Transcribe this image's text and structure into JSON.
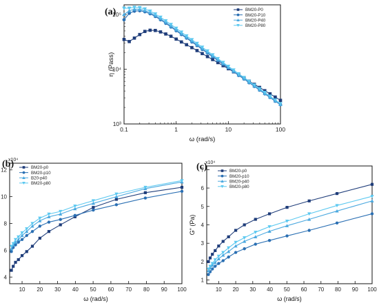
{
  "chart_data": [
    {
      "type": "line",
      "panel_label": "(a)",
      "xlabel": "ω (rad/s)",
      "ylabel": "η (Pass)",
      "xscale": "log",
      "yscale": "log",
      "xlim": [
        0.1,
        100
      ],
      "ylim": [
        1000,
        150000
      ],
      "xticks": [
        0.1,
        1,
        10,
        100
      ],
      "xtick_labels": [
        "0.1",
        "1",
        "10",
        "100"
      ],
      "yticks": [
        1000,
        10000,
        100000
      ],
      "ytick_labels": [
        "10³",
        "10⁴",
        "10⁵"
      ],
      "legend_position": "top-right",
      "grid": false,
      "x": [
        0.1,
        0.126,
        0.158,
        0.2,
        0.251,
        0.316,
        0.398,
        0.501,
        0.631,
        0.794,
        1,
        1.26,
        1.58,
        2,
        2.51,
        3.16,
        3.98,
        5.01,
        6.31,
        7.94,
        10,
        12.6,
        15.8,
        20,
        25.1,
        31.6,
        39.8,
        50.1,
        63.1,
        79.4,
        100
      ],
      "series": [
        {
          "name": "BM20-P0",
          "marker": "square",
          "color": "#1f3d7a",
          "values": [
            35000,
            32000,
            37000,
            43000,
            49000,
            51500,
            51000,
            48000,
            44000,
            40000,
            35500,
            31500,
            28000,
            24800,
            21900,
            19300,
            17000,
            15000,
            13200,
            11600,
            10200,
            8950,
            7850,
            6900,
            6050,
            5300,
            4650,
            4050,
            3550,
            3100,
            2700
          ]
        },
        {
          "name": "BM20-P10",
          "marker": "circle",
          "color": "#2a6fb3",
          "values": [
            80000,
            105000,
            115000,
            117000,
            112000,
            103000,
            92000,
            80000,
            69000,
            59000,
            50500,
            43000,
            37000,
            31500,
            27000,
            23000,
            19700,
            16800,
            14400,
            12300,
            10500,
            9000,
            7700,
            6600,
            5650,
            4850,
            4150,
            3550,
            3050,
            2600,
            2250
          ]
        },
        {
          "name": "BM20-P40",
          "marker": "triangle-up",
          "color": "#4aa8df",
          "values": [
            100000,
            117000,
            125000,
            124000,
            118000,
            108000,
            96000,
            83500,
            72000,
            61500,
            52500,
            44500,
            38200,
            32700,
            28000,
            23900,
            20400,
            17400,
            14900,
            12700,
            10800,
            9250,
            7900,
            6750,
            5780,
            4950,
            4230,
            3620,
            3100,
            2650,
            2270
          ]
        },
        {
          "name": "BM20-P80",
          "marker": "triangle-down",
          "color": "#5bc8f0",
          "values": [
            130000,
            130000,
            135000,
            133000,
            126000,
            115000,
            102000,
            89000,
            76500,
            65500,
            56000,
            47500,
            40500,
            34600,
            29600,
            25200,
            21500,
            18300,
            15600,
            13300,
            11300,
            9650,
            8250,
            7050,
            6020,
            5150,
            4400,
            3760,
            3210,
            2740,
            2340
          ]
        }
      ]
    },
    {
      "type": "line",
      "panel_label": "(b)",
      "xlabel": "ω (rad/s)",
      "ylabel": "G' (Pa)",
      "ymultiplier": "x10⁴",
      "xlim": [
        3,
        100
      ],
      "ylim": [
        3.5,
        12.5
      ],
      "xticks": [
        10,
        20,
        30,
        40,
        50,
        60,
        70,
        80,
        90,
        100
      ],
      "yticks": [
        4,
        6,
        8,
        10,
        12
      ],
      "legend_position": "top-left",
      "grid": false,
      "x": [
        3.98,
        5.01,
        6.31,
        7.94,
        10,
        12.6,
        15.8,
        20,
        25.1,
        31.6,
        39.8,
        50.1,
        63.1,
        79.4,
        100
      ],
      "series": [
        {
          "name": "BM20-p0",
          "marker": "square",
          "color": "#1f3d7a",
          "values": [
            4.5,
            4.8,
            5.1,
            5.3,
            5.6,
            5.9,
            6.3,
            6.9,
            7.4,
            7.9,
            8.5,
            9.2,
            9.8,
            10.3,
            10.7
          ]
        },
        {
          "name": "BM20-p10",
          "marker": "circle",
          "color": "#2a6fb3",
          "values": [
            5.9,
            6.2,
            6.4,
            6.6,
            6.8,
            7.1,
            7.4,
            7.8,
            8.1,
            8.3,
            8.6,
            9.0,
            9.4,
            9.9,
            10.4
          ]
        },
        {
          "name": "B20-p40",
          "marker": "triangle-up",
          "color": "#4aa8df",
          "values": [
            6.1,
            6.4,
            6.6,
            6.8,
            7.1,
            7.4,
            7.8,
            8.2,
            8.5,
            8.7,
            9.1,
            9.5,
            10.0,
            10.6,
            11.1
          ]
        },
        {
          "name": "BM20-p80",
          "marker": "triangle-down",
          "color": "#5bc8f0",
          "values": [
            6.3,
            6.5,
            6.8,
            7.0,
            7.3,
            7.6,
            8.0,
            8.4,
            8.7,
            8.9,
            9.3,
            9.7,
            10.2,
            10.7,
            11.2
          ]
        }
      ]
    },
    {
      "type": "line",
      "panel_label": "(c)",
      "xlabel": "ω (rad/s)",
      "ylabel": "G\" (Pa)",
      "ymultiplier": "x10⁴",
      "xlim": [
        3,
        100
      ],
      "ylim": [
        0.8,
        7.2
      ],
      "xticks": [
        10,
        20,
        30,
        40,
        50,
        60,
        70,
        80,
        90,
        100
      ],
      "yticks": [
        1,
        2,
        3,
        4,
        5,
        6,
        7
      ],
      "legend_position": "top-left",
      "grid": false,
      "x": [
        3.98,
        5.01,
        6.31,
        7.94,
        10,
        12.6,
        15.8,
        20,
        25.1,
        31.6,
        39.8,
        50.1,
        63.1,
        79.4,
        100
      ],
      "series": [
        {
          "name": "BM20-p0",
          "marker": "square",
          "color": "#1f3d7a",
          "values": [
            2.0,
            2.2,
            2.4,
            2.6,
            2.85,
            3.1,
            3.35,
            3.7,
            4.0,
            4.3,
            4.6,
            4.95,
            5.3,
            5.7,
            6.2
          ]
        },
        {
          "name": "BM20-p10",
          "marker": "circle",
          "color": "#2a6fb3",
          "values": [
            1.3,
            1.45,
            1.6,
            1.75,
            1.9,
            2.05,
            2.25,
            2.5,
            2.7,
            2.95,
            3.15,
            3.4,
            3.7,
            4.1,
            4.6
          ]
        },
        {
          "name": "BM20-p40",
          "marker": "triangle-up",
          "color": "#4aa8df",
          "values": [
            1.5,
            1.65,
            1.8,
            1.95,
            2.15,
            2.35,
            2.55,
            2.85,
            3.1,
            3.35,
            3.65,
            3.95,
            4.3,
            4.75,
            5.3
          ]
        },
        {
          "name": "BM20-p80",
          "marker": "triangle-down",
          "color": "#5bc8f0",
          "values": [
            1.6,
            1.75,
            1.9,
            2.1,
            2.3,
            2.5,
            2.75,
            3.05,
            3.3,
            3.6,
            3.9,
            4.2,
            4.6,
            5.05,
            5.55
          ]
        }
      ]
    }
  ]
}
